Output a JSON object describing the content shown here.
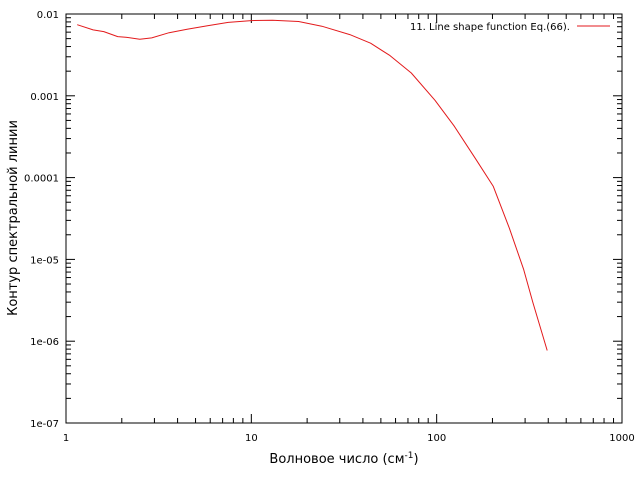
{
  "chart_data": {
    "type": "line",
    "title": "",
    "xlabel_main": "Волновое число (см",
    "xlabel_sup": "-1",
    "xlabel_close": ")",
    "ylabel": "Контур спектральной линии",
    "x_scale": "log",
    "y_scale": "log",
    "xlim": [
      1,
      1000
    ],
    "ylim": [
      1e-07,
      0.01
    ],
    "x_ticks": [
      1,
      10,
      100,
      1000
    ],
    "x_tick_labels": [
      "1",
      "10",
      "100",
      "1000"
    ],
    "y_ticks": [
      1e-07,
      1e-06,
      1e-05,
      0.0001,
      0.001,
      0.01
    ],
    "y_tick_labels": [
      "1e-07",
      "1e-06",
      "1e-05",
      "0.0001",
      "0.001",
      "0.01"
    ],
    "grid": false,
    "legend_position": "top-right",
    "series": [
      {
        "name": "11. Line shape function Eq.(66).",
        "color": "#e31a1c",
        "x": [
          1.15,
          1.4,
          1.6,
          1.9,
          2.1,
          2.5,
          2.9,
          3.6,
          4.5,
          5.8,
          7.5,
          10,
          13,
          18,
          24,
          34,
          44,
          56,
          73,
          98,
          124,
          162,
          202,
          247,
          295,
          330,
          395
        ],
        "y": [
          0.0074,
          0.0064,
          0.0061,
          0.0053,
          0.0052,
          0.0049,
          0.0051,
          0.0059,
          0.0065,
          0.0072,
          0.0079,
          0.0083,
          0.0084,
          0.0081,
          0.0071,
          0.0056,
          0.0044,
          0.0031,
          0.0019,
          0.00088,
          0.00043,
          0.00017,
          7.8e-05,
          2.4e-05,
          7.5e-06,
          3e-06,
          7.7e-07
        ]
      }
    ]
  }
}
